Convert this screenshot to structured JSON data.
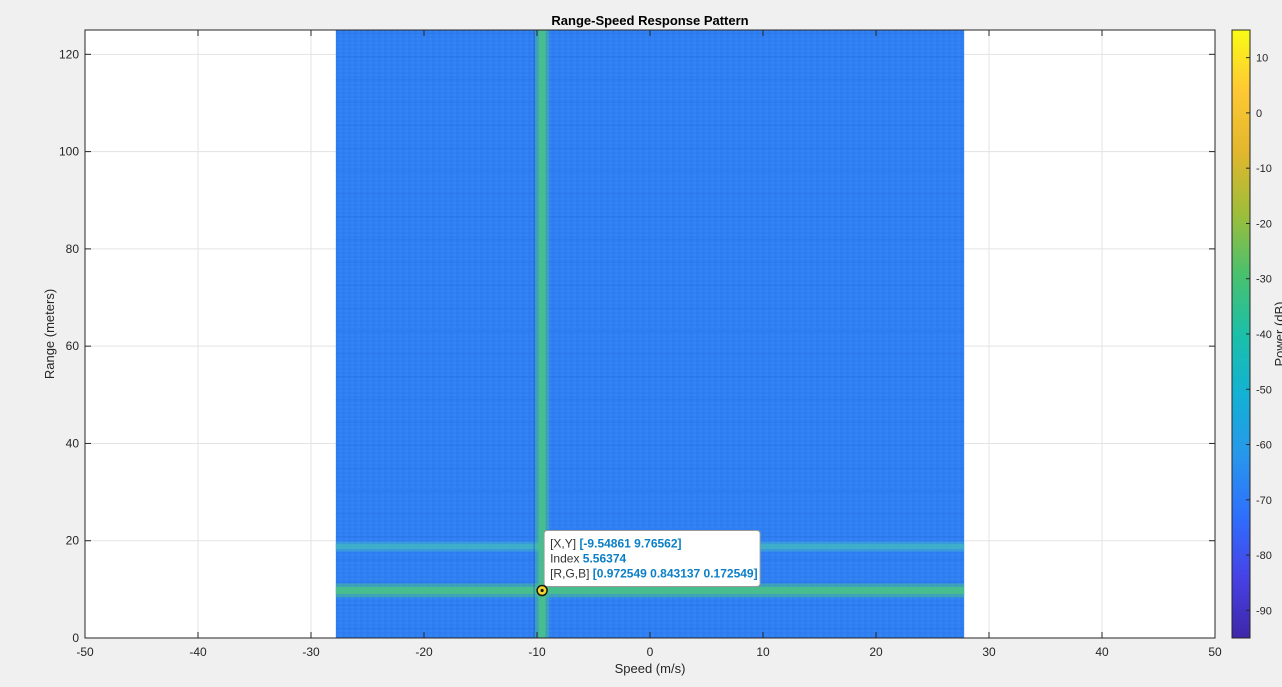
{
  "chart_data": {
    "type": "heatmap",
    "title": "Range-Speed Response Pattern",
    "xlabel": "Speed (m/s)",
    "ylabel": "Range (meters)",
    "xlim": [
      -50,
      50
    ],
    "ylim": [
      0,
      125
    ],
    "xticks": [
      -50,
      -40,
      -30,
      -20,
      -10,
      0,
      10,
      20,
      30,
      40,
      50
    ],
    "yticks": [
      0,
      20,
      40,
      60,
      80,
      100,
      120
    ],
    "grid": true,
    "data_extent": {
      "x": [
        -27.8,
        27.8
      ],
      "y": [
        0,
        125
      ]
    },
    "background_level_db": -60,
    "features": [
      {
        "kind": "horizontal_band",
        "range_m": 9.77,
        "level_db": -30
      },
      {
        "kind": "horizontal_band",
        "range_m": 18.8,
        "level_db": -42
      },
      {
        "kind": "vertical_band",
        "speed_mps": -9.55,
        "level_db": -32
      }
    ],
    "colorbar": {
      "label": "Power (dB)",
      "range": [
        -95,
        15
      ],
      "ticks": [
        10,
        0,
        -10,
        -20,
        -30,
        -40,
        -50,
        -60,
        -70,
        -80,
        -90
      ],
      "colormap": [
        "#3e26a8",
        "#4742e6",
        "#2e6ffd",
        "#2797eb",
        "#13b1d4",
        "#1bc0a8",
        "#4ac16d",
        "#a0bd39",
        "#e2b72d",
        "#fec834",
        "#f9fb15"
      ]
    },
    "datatip": {
      "x": -9.54861,
      "y": 9.76562,
      "lines": [
        {
          "key": "[X,Y]",
          "value": "[-9.54861 9.76562]"
        },
        {
          "key": "Index",
          "value": "5.56374"
        },
        {
          "key": "[R,G,B]",
          "value": "[0.972549 0.843137 0.172549]"
        }
      ]
    }
  },
  "colors": {
    "background_blue": "#2f7ff3",
    "band_green": "#49c08a",
    "band_teal": "#3fb0c9",
    "axes_bg": "#ffffff",
    "grid": "#e3e3e3"
  }
}
